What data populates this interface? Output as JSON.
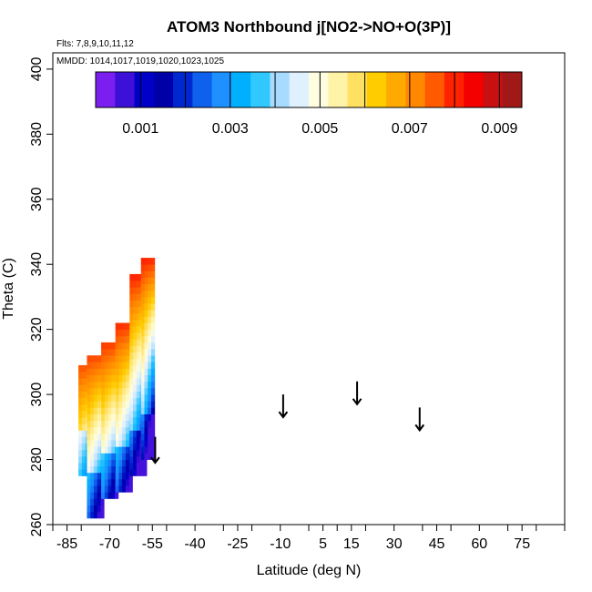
{
  "chart_data": {
    "type": "heatmap",
    "title": "ATOM3 Northbound j[NO2->NO+O(3P)]",
    "flights_note": "Flts: 7,8,9,10,11,12",
    "dates_note": "MMDD: 1014,1017,1019,1020,1023,1025",
    "xlabel": "Latitude (deg N)",
    "ylabel": "Theta (C)",
    "xlim": [
      -90,
      90
    ],
    "ylim": [
      260,
      405
    ],
    "x_ticks": [
      -85,
      -70,
      -55,
      -40,
      -25,
      -10,
      5,
      15,
      30,
      45,
      60,
      75
    ],
    "y_ticks": [
      260,
      280,
      300,
      320,
      340,
      360,
      380,
      400
    ],
    "colorbar": {
      "min": 0.0,
      "max": 0.0095,
      "tick_values": [
        0.001,
        0.003,
        0.005,
        0.007,
        0.009
      ],
      "tick_labels": [
        "0.001",
        "0.003",
        "0.005",
        "0.007",
        "0.009"
      ],
      "colors": [
        "#7a1ff0",
        "#3d10d8",
        "#0000c8",
        "#0000a8",
        "#0028d0",
        "#1060ee",
        "#1e90ff",
        "#00b0ff",
        "#30c8ff",
        "#a8dcff",
        "#dff0ff",
        "#fffde0",
        "#fff3a8",
        "#ffe060",
        "#ffcc00",
        "#ffaa00",
        "#ff8800",
        "#ff5a00",
        "#ff2200",
        "#f40000",
        "#c81010",
        "#a01818"
      ]
    },
    "profiles": [
      {
        "lat_min": -81,
        "lat_max": -76,
        "theta_min": 275,
        "theta_max": 308,
        "peak_value": 0.0078
      },
      {
        "lat_min": -78,
        "lat_max": -72,
        "theta_min": 262,
        "theta_max": 312,
        "peak_value": 0.008
      },
      {
        "lat_min": -73,
        "lat_max": -67,
        "theta_min": 268,
        "theta_max": 316,
        "peak_value": 0.0081
      },
      {
        "lat_min": -68,
        "lat_max": -62,
        "theta_min": 270,
        "theta_max": 322,
        "peak_value": 0.0082
      },
      {
        "lat_min": -63,
        "lat_max": -57,
        "theta_min": 275,
        "theta_max": 336,
        "peak_value": 0.0082
      },
      {
        "lat_min": -59,
        "lat_max": -55,
        "theta_min": 280,
        "theta_max": 342,
        "peak_value": 0.0083
      }
    ],
    "arrows": [
      {
        "lat": -54,
        "theta_top": 287,
        "theta_bottom": 279
      },
      {
        "lat": -9,
        "theta_top": 300,
        "theta_bottom": 293
      },
      {
        "lat": 17,
        "theta_top": 304,
        "theta_bottom": 297
      },
      {
        "lat": 39,
        "theta_top": 296,
        "theta_bottom": 289
      }
    ]
  }
}
